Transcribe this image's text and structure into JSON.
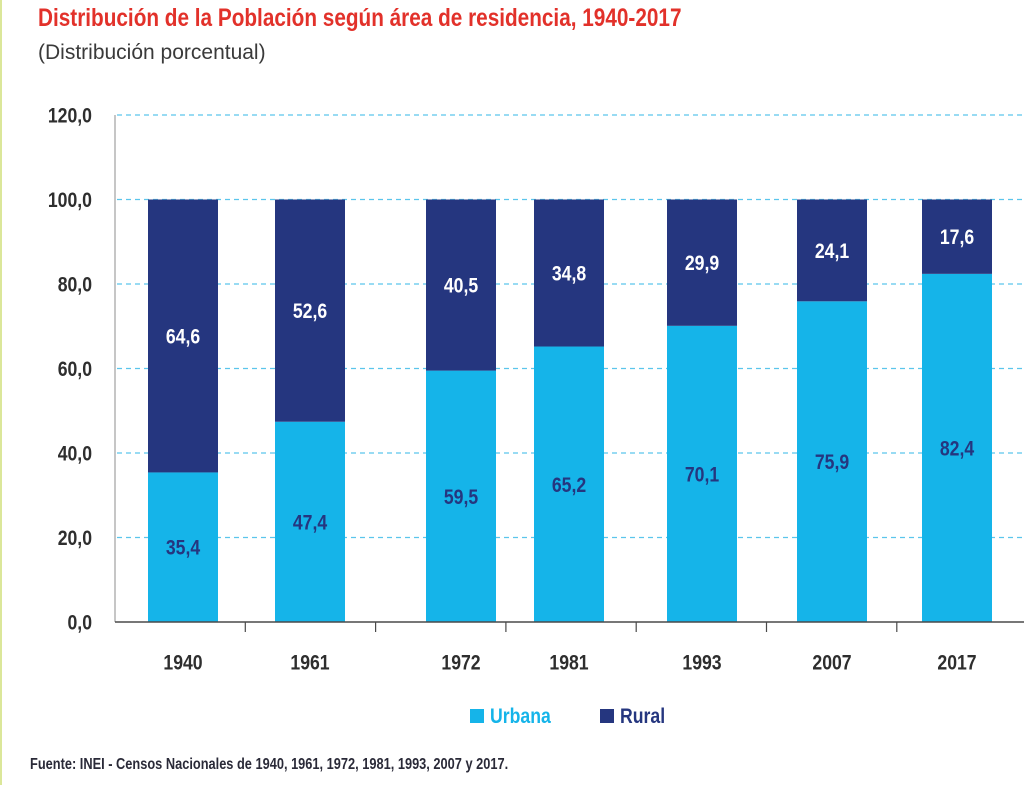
{
  "colors": {
    "title": "#E2312A",
    "subtitle": "#3A3A3A",
    "grid": "#5BC5EC",
    "axis": "#4A4A4A",
    "axis_light": "#8C8C8C",
    "axis_text": "#2E2E2E",
    "source": "#2A2A38"
  },
  "chart_data": {
    "type": "bar",
    "stacked": true,
    "title": "Distribución de la Población según área de residencia, 1940-2017",
    "subtitle": "(Distribución porcentual)",
    "categories": [
      "1940",
      "1961",
      "1972",
      "1981",
      "1993",
      "2007",
      "2017"
    ],
    "series": [
      {
        "name": "Urbana",
        "values": [
          35.4,
          47.4,
          59.5,
          65.2,
          70.1,
          75.9,
          82.4
        ],
        "labels": [
          "35,4",
          "47,4",
          "59,5",
          "65,2",
          "70,1",
          "75,9",
          "82,4"
        ],
        "color": "#15B4E9",
        "label_color": "#25367F"
      },
      {
        "name": "Rural",
        "values": [
          64.6,
          52.6,
          40.5,
          34.8,
          29.9,
          24.1,
          17.6
        ],
        "labels": [
          "64,6",
          "52,6",
          "40,5",
          "34,8",
          "29,9",
          "24,1",
          "17,6"
        ],
        "color": "#25367F",
        "label_color": "#FFFFFF"
      }
    ],
    "ylim": [
      0,
      120
    ],
    "yticks": [
      0,
      20,
      40,
      60,
      80,
      100,
      120
    ],
    "ytick_labels": [
      "0,0",
      "20,0",
      "40,0",
      "60,0",
      "80,0",
      "100,0",
      "120,0"
    ],
    "grid": true,
    "legend": "bottom",
    "source": "Fuente: INEI - Censos Nacionales de 1940, 1961, 1972, 1981, 1993, 2007 y 2017."
  }
}
